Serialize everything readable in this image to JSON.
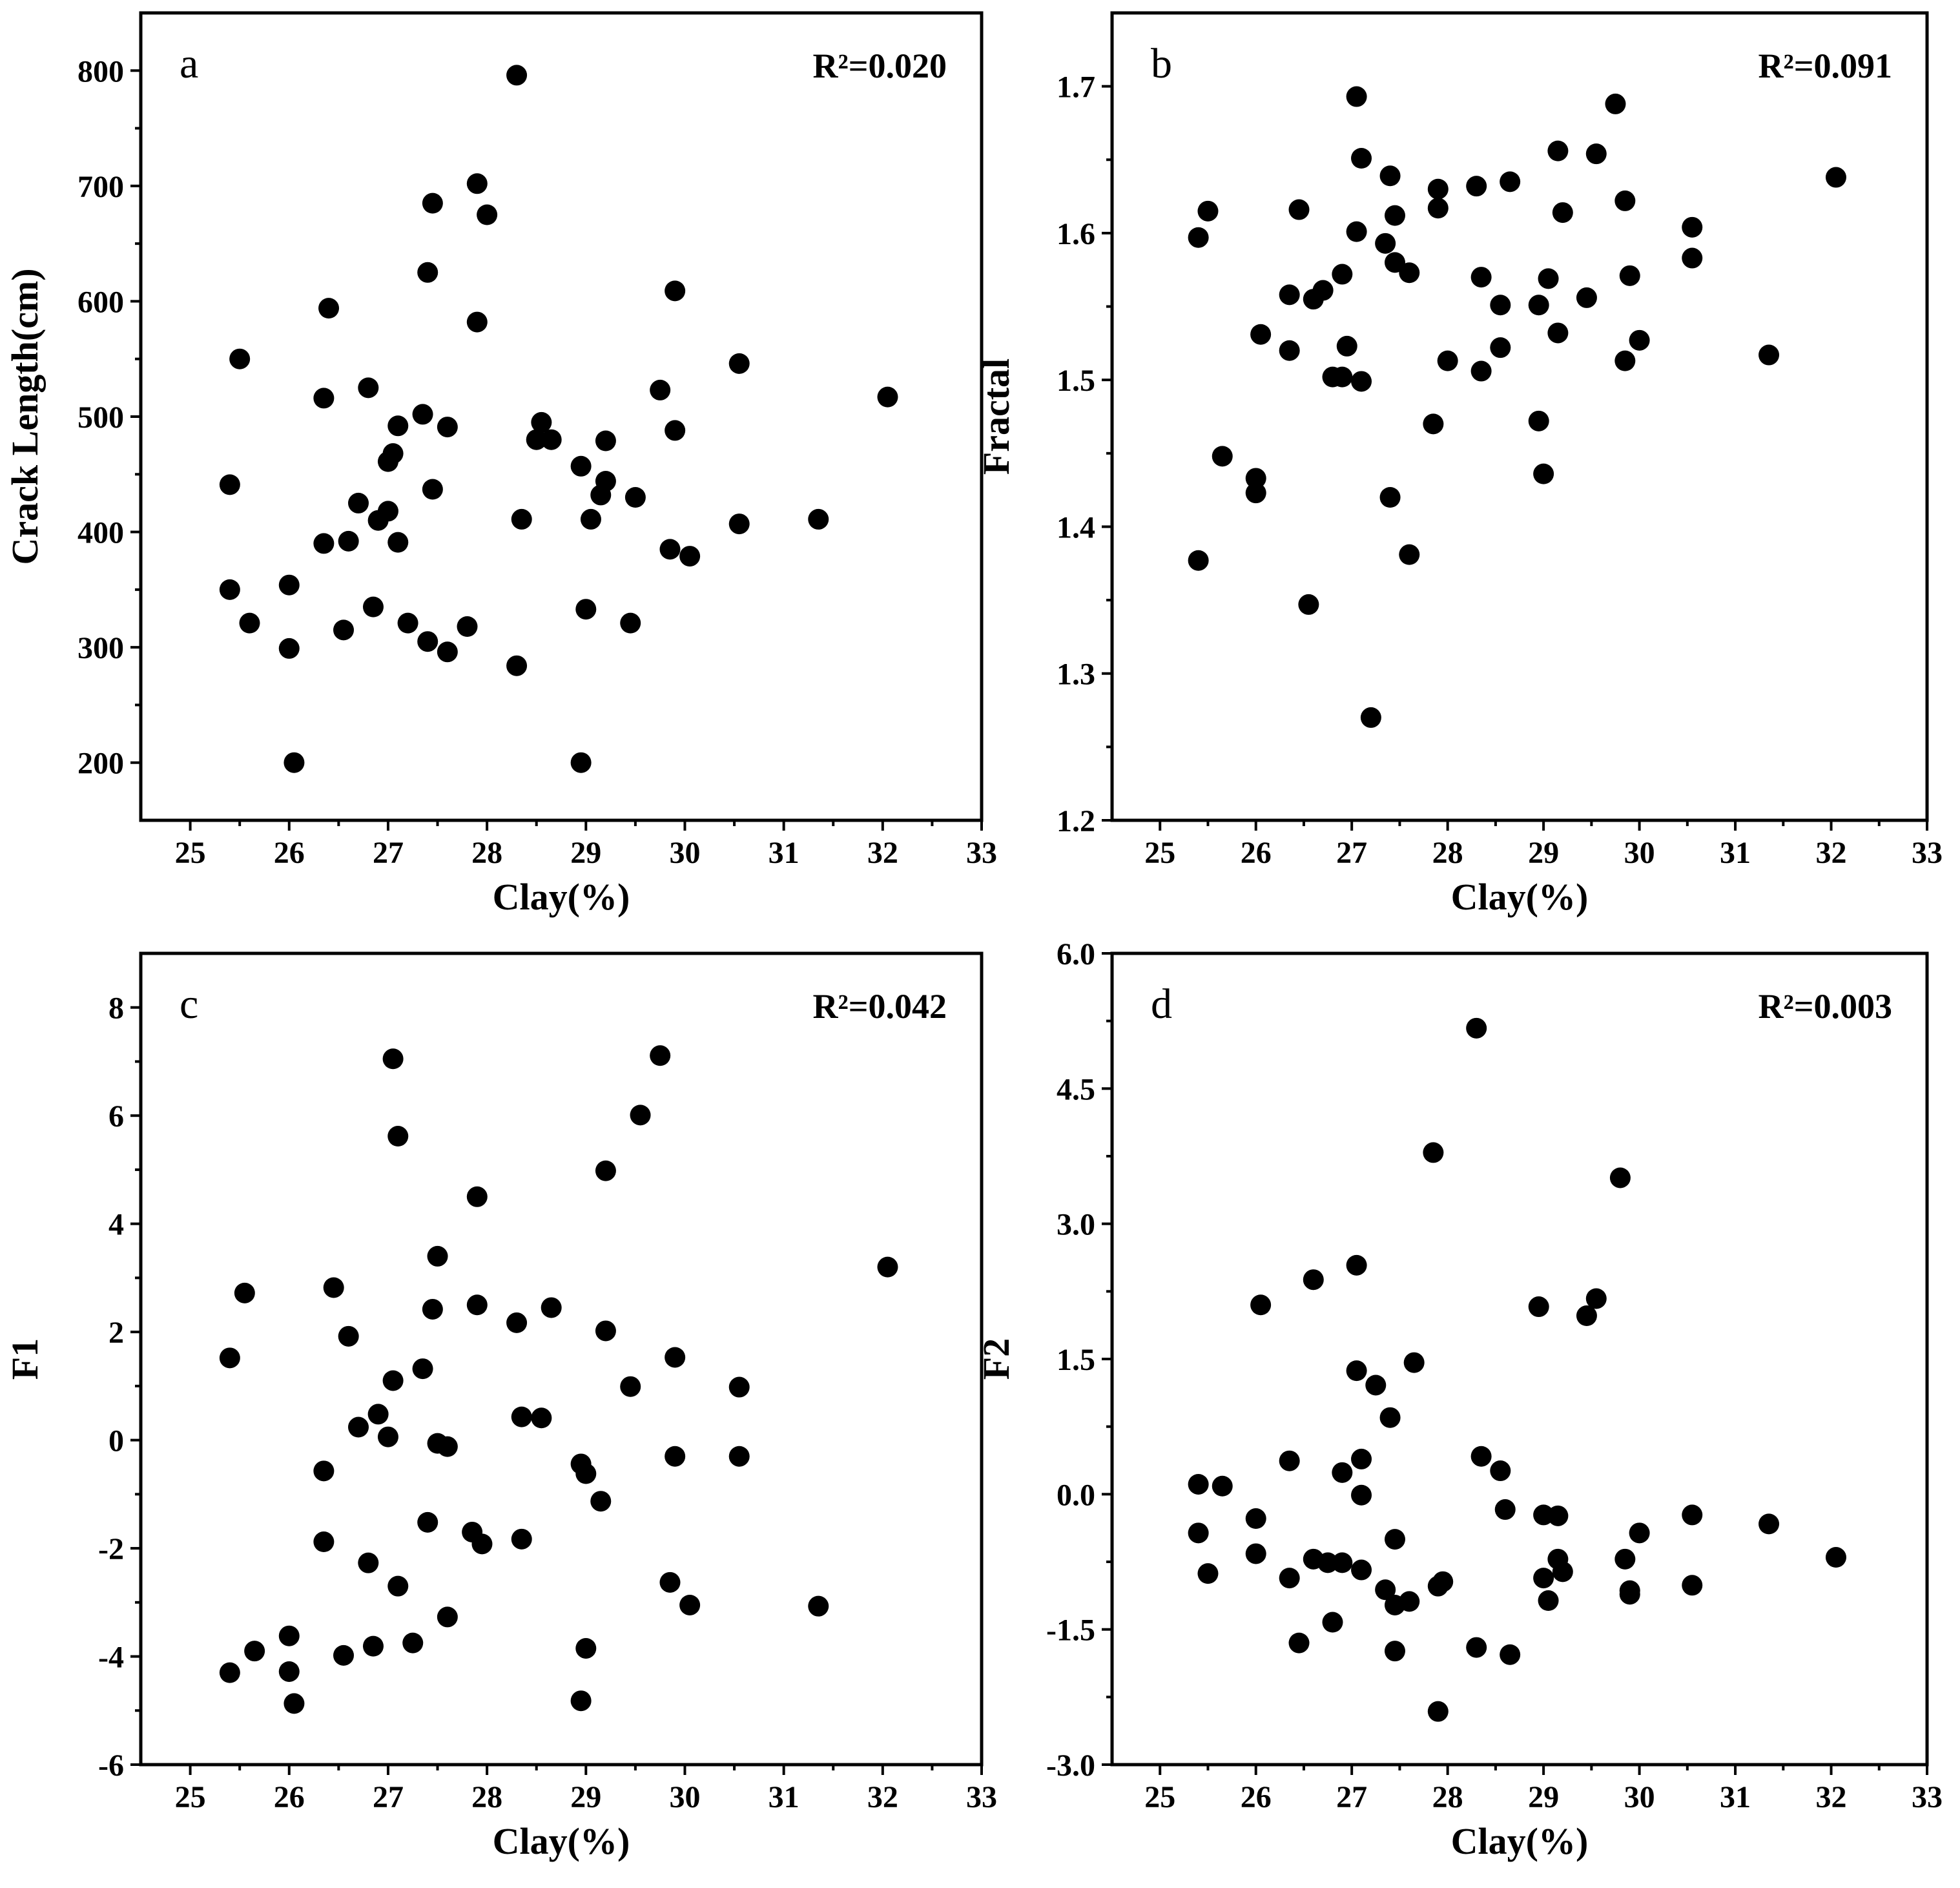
{
  "chart_data": [
    {
      "type": "scatter",
      "panel": "a",
      "r2_label": "R²=0.020",
      "xlabel": "Clay(%)",
      "ylabel": "Crack Length(cm)",
      "xlim": [
        24.5,
        33
      ],
      "ylim": [
        150,
        850
      ],
      "xticks": [
        25,
        26,
        27,
        28,
        29,
        30,
        31,
        32,
        33
      ],
      "yticks": [
        200,
        300,
        400,
        500,
        600,
        700,
        800
      ],
      "ytick_labels": [
        "200",
        "300",
        "400",
        "500",
        "600",
        "700",
        "800"
      ],
      "points": [
        [
          25.4,
          441
        ],
        [
          25.5,
          550
        ],
        [
          25.4,
          350
        ],
        [
          25.6,
          321
        ],
        [
          26.0,
          299
        ],
        [
          26.0,
          354
        ],
        [
          26.05,
          200
        ],
        [
          26.4,
          594
        ],
        [
          26.35,
          516
        ],
        [
          26.35,
          390
        ],
        [
          26.55,
          315
        ],
        [
          26.6,
          392
        ],
        [
          26.7,
          425
        ],
        [
          26.8,
          525
        ],
        [
          26.85,
          335
        ],
        [
          26.9,
          410
        ],
        [
          27.0,
          418
        ],
        [
          27.0,
          461
        ],
        [
          27.05,
          468
        ],
        [
          27.1,
          391
        ],
        [
          27.1,
          492
        ],
        [
          27.2,
          321
        ],
        [
          27.35,
          502
        ],
        [
          27.4,
          625
        ],
        [
          27.45,
          685
        ],
        [
          27.4,
          305
        ],
        [
          27.45,
          437
        ],
        [
          27.6,
          491
        ],
        [
          27.6,
          296
        ],
        [
          27.8,
          318
        ],
        [
          27.9,
          702
        ],
        [
          27.9,
          582
        ],
        [
          28.0,
          675
        ],
        [
          28.3,
          796
        ],
        [
          28.3,
          284
        ],
        [
          28.35,
          411
        ],
        [
          28.5,
          480
        ],
        [
          28.55,
          495
        ],
        [
          28.65,
          480
        ],
        [
          28.95,
          457
        ],
        [
          29.0,
          333
        ],
        [
          28.95,
          200
        ],
        [
          29.05,
          411
        ],
        [
          29.15,
          432
        ],
        [
          29.2,
          444
        ],
        [
          29.2,
          479
        ],
        [
          29.5,
          430
        ],
        [
          29.45,
          321
        ],
        [
          29.75,
          523
        ],
        [
          29.85,
          385
        ],
        [
          29.9,
          488
        ],
        [
          29.9,
          609
        ],
        [
          30.05,
          379
        ],
        [
          30.55,
          407
        ],
        [
          30.55,
          546
        ],
        [
          31.35,
          411
        ],
        [
          32.05,
          517
        ]
      ]
    },
    {
      "type": "scatter",
      "panel": "b",
      "r2_label": "R²=0.091",
      "xlabel": "Clay(%)",
      "ylabel": "Fractal",
      "xlim": [
        24.5,
        33
      ],
      "ylim": [
        1.2,
        1.75
      ],
      "xticks": [
        25,
        26,
        27,
        28,
        29,
        30,
        31,
        32,
        33
      ],
      "yticks": [
        1.2,
        1.3,
        1.4,
        1.5,
        1.6,
        1.7
      ],
      "ytick_labels": [
        "1.2",
        "1.3",
        "1.4",
        "1.5",
        "1.6",
        "1.7"
      ],
      "points": [
        [
          25.4,
          1.597
        ],
        [
          25.5,
          1.615
        ],
        [
          25.4,
          1.377
        ],
        [
          25.65,
          1.448
        ],
        [
          26.0,
          1.433
        ],
        [
          26.0,
          1.423
        ],
        [
          26.05,
          1.531
        ],
        [
          26.35,
          1.558
        ],
        [
          26.35,
          1.52
        ],
        [
          26.45,
          1.616
        ],
        [
          26.6,
          1.555
        ],
        [
          26.55,
          1.347
        ],
        [
          26.7,
          1.561
        ],
        [
          26.9,
          1.572
        ],
        [
          26.8,
          1.502
        ],
        [
          26.9,
          1.502
        ],
        [
          26.95,
          1.523
        ],
        [
          27.05,
          1.693
        ],
        [
          27.05,
          1.601
        ],
        [
          27.1,
          1.651
        ],
        [
          27.1,
          1.499
        ],
        [
          27.35,
          1.593
        ],
        [
          27.4,
          1.639
        ],
        [
          27.45,
          1.612
        ],
        [
          27.45,
          1.58
        ],
        [
          27.6,
          1.573
        ],
        [
          27.4,
          1.42
        ],
        [
          27.6,
          1.381
        ],
        [
          27.2,
          1.27
        ],
        [
          27.85,
          1.47
        ],
        [
          27.9,
          1.63
        ],
        [
          27.9,
          1.617
        ],
        [
          28.0,
          1.513
        ],
        [
          28.3,
          1.632
        ],
        [
          28.35,
          1.57
        ],
        [
          28.35,
          1.506
        ],
        [
          28.55,
          1.551
        ],
        [
          28.55,
          1.522
        ],
        [
          28.65,
          1.635
        ],
        [
          28.95,
          1.551
        ],
        [
          28.95,
          1.472
        ],
        [
          29.0,
          1.436
        ],
        [
          29.05,
          1.569
        ],
        [
          29.15,
          1.532
        ],
        [
          29.15,
          1.656
        ],
        [
          29.2,
          1.614
        ],
        [
          29.45,
          1.556
        ],
        [
          29.55,
          1.654
        ],
        [
          29.75,
          1.688
        ],
        [
          29.85,
          1.622
        ],
        [
          29.85,
          1.513
        ],
        [
          29.9,
          1.571
        ],
        [
          30.0,
          1.527
        ],
        [
          30.55,
          1.604
        ],
        [
          30.55,
          1.583
        ],
        [
          31.35,
          1.517
        ],
        [
          32.05,
          1.638
        ]
      ]
    },
    {
      "type": "scatter",
      "panel": "c",
      "r2_label": "R²=0.042",
      "xlabel": "Clay(%)",
      "ylabel": "F1",
      "xlim": [
        24.5,
        33
      ],
      "ylim": [
        -6,
        9
      ],
      "xticks": [
        25,
        26,
        27,
        28,
        29,
        30,
        31,
        32,
        33
      ],
      "yticks": [
        -6,
        -4,
        -2,
        0,
        2,
        4,
        6,
        8
      ],
      "ytick_labels": [
        "-6",
        "-4",
        "-2",
        "0",
        "2",
        "4",
        "6",
        "8"
      ],
      "points": [
        [
          25.4,
          1.52
        ],
        [
          25.55,
          2.72
        ],
        [
          25.4,
          -4.3
        ],
        [
          25.65,
          -3.9
        ],
        [
          26.0,
          -3.62
        ],
        [
          26.0,
          -4.28
        ],
        [
          26.05,
          -4.87
        ],
        [
          26.45,
          2.82
        ],
        [
          26.35,
          -0.57
        ],
        [
          26.35,
          -1.88
        ],
        [
          26.55,
          -3.98
        ],
        [
          26.6,
          1.92
        ],
        [
          26.7,
          0.24
        ],
        [
          26.8,
          -2.27
        ],
        [
          26.85,
          -3.81
        ],
        [
          26.9,
          0.48
        ],
        [
          27.0,
          0.06
        ],
        [
          27.05,
          7.05
        ],
        [
          27.05,
          1.1
        ],
        [
          27.1,
          5.62
        ],
        [
          27.1,
          -2.7
        ],
        [
          27.25,
          -3.75
        ],
        [
          27.35,
          1.32
        ],
        [
          27.4,
          -1.52
        ],
        [
          27.45,
          2.42
        ],
        [
          27.5,
          3.4
        ],
        [
          27.5,
          -0.06
        ],
        [
          27.6,
          -0.12
        ],
        [
          27.6,
          -3.27
        ],
        [
          27.85,
          -1.7
        ],
        [
          27.9,
          4.5
        ],
        [
          27.9,
          2.5
        ],
        [
          27.95,
          -1.92
        ],
        [
          28.3,
          2.17
        ],
        [
          28.35,
          0.43
        ],
        [
          28.35,
          -1.83
        ],
        [
          28.55,
          0.41
        ],
        [
          28.65,
          2.45
        ],
        [
          28.95,
          -0.44
        ],
        [
          29.0,
          -0.62
        ],
        [
          29.0,
          -3.85
        ],
        [
          28.95,
          -4.82
        ],
        [
          29.15,
          -1.13
        ],
        [
          29.2,
          4.98
        ],
        [
          29.2,
          2.02
        ],
        [
          29.45,
          0.99
        ],
        [
          29.55,
          6.01
        ],
        [
          29.75,
          7.11
        ],
        [
          29.85,
          -2.63
        ],
        [
          29.9,
          1.53
        ],
        [
          29.9,
          -0.3
        ],
        [
          30.05,
          -3.05
        ],
        [
          30.55,
          0.98
        ],
        [
          30.55,
          -0.3
        ],
        [
          31.35,
          -3.07
        ],
        [
          32.05,
          3.2
        ]
      ]
    },
    {
      "type": "scatter",
      "panel": "d",
      "r2_label": "R²=0.003",
      "xlabel": "Clay(%)",
      "ylabel": "F2",
      "xlim": [
        24.5,
        33
      ],
      "ylim": [
        -3.0,
        6.0
      ],
      "xticks": [
        25,
        26,
        27,
        28,
        29,
        30,
        31,
        32,
        33
      ],
      "yticks": [
        -3.0,
        -1.5,
        0.0,
        1.5,
        3.0,
        4.5,
        6.0
      ],
      "ytick_labels": [
        "-3.0",
        "-1.5",
        "0.0",
        "1.5",
        "3.0",
        "4.5",
        "6.0"
      ],
      "points": [
        [
          25.4,
          0.11
        ],
        [
          25.65,
          0.09
        ],
        [
          25.4,
          -0.43
        ],
        [
          25.5,
          -0.88
        ],
        [
          26.0,
          -0.27
        ],
        [
          26.0,
          -0.66
        ],
        [
          26.05,
          2.1
        ],
        [
          26.35,
          0.37
        ],
        [
          26.35,
          -0.93
        ],
        [
          26.45,
          -1.65
        ],
        [
          26.6,
          2.38
        ],
        [
          26.6,
          -0.72
        ],
        [
          26.75,
          -0.76
        ],
        [
          26.8,
          -1.42
        ],
        [
          26.9,
          -0.76
        ],
        [
          26.9,
          0.24
        ],
        [
          27.05,
          2.54
        ],
        [
          27.05,
          1.37
        ],
        [
          27.1,
          0.39
        ],
        [
          27.1,
          -0.01
        ],
        [
          27.1,
          -0.84
        ],
        [
          27.25,
          1.21
        ],
        [
          27.35,
          -1.06
        ],
        [
          27.4,
          0.85
        ],
        [
          27.45,
          -0.5
        ],
        [
          27.45,
          -1.23
        ],
        [
          27.45,
          -1.74
        ],
        [
          27.6,
          -1.19
        ],
        [
          27.65,
          1.46
        ],
        [
          27.85,
          3.79
        ],
        [
          27.9,
          -1.02
        ],
        [
          27.95,
          -0.97
        ],
        [
          27.9,
          -2.41
        ],
        [
          28.3,
          5.17
        ],
        [
          28.35,
          0.42
        ],
        [
          28.3,
          -1.7
        ],
        [
          28.55,
          0.26
        ],
        [
          28.6,
          -0.17
        ],
        [
          28.65,
          -1.78
        ],
        [
          28.95,
          2.08
        ],
        [
          29.0,
          -0.23
        ],
        [
          29.0,
          -0.93
        ],
        [
          29.05,
          -1.18
        ],
        [
          29.15,
          -0.24
        ],
        [
          29.15,
          -0.72
        ],
        [
          29.2,
          -0.86
        ],
        [
          29.45,
          1.98
        ],
        [
          29.55,
          2.17
        ],
        [
          29.8,
          3.51
        ],
        [
          29.85,
          -0.72
        ],
        [
          29.9,
          -1.11
        ],
        [
          29.9,
          -1.07
        ],
        [
          30.0,
          -0.43
        ],
        [
          30.55,
          -0.23
        ],
        [
          30.55,
          -1.01
        ],
        [
          31.35,
          -0.33
        ],
        [
          32.05,
          -0.7
        ]
      ]
    }
  ]
}
